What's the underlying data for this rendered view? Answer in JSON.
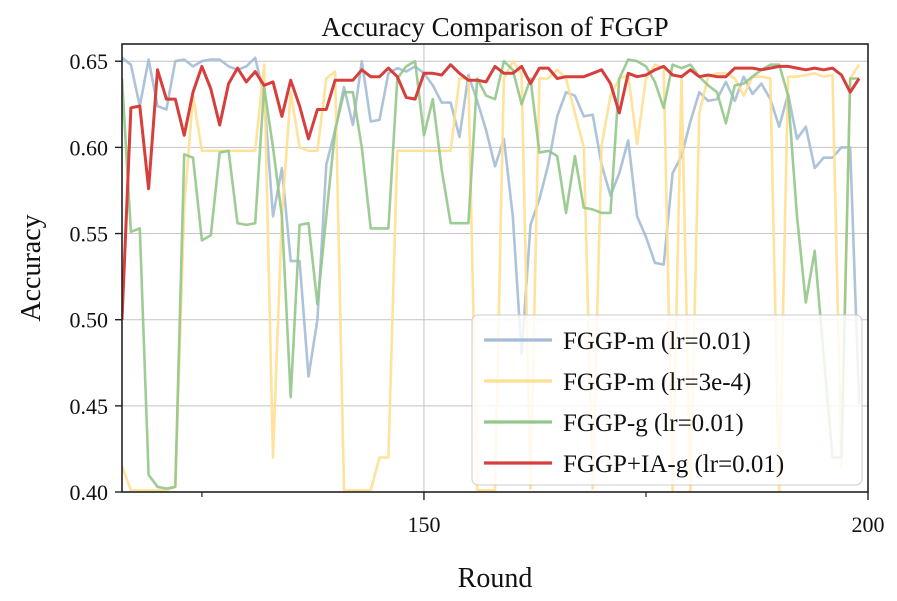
{
  "chart_data": {
    "type": "line",
    "title": "Accuracy Comparison of FGGP",
    "xlabel": "Round",
    "ylabel": "Accuracy",
    "xlim": [
      116,
      200
    ],
    "ylim": [
      0.4,
      0.66
    ],
    "x_major_ticks": [
      150,
      200
    ],
    "x_minor_ticks": [
      125,
      175
    ],
    "y_ticks": [
      0.4,
      0.45,
      0.5,
      0.55,
      0.6,
      0.65
    ],
    "y_tick_labels": [
      "0.40",
      "0.45",
      "0.50",
      "0.55",
      "0.60",
      "0.65"
    ],
    "x_tick_labels": [
      "150",
      "200"
    ],
    "grid": true,
    "legend_position": "bottom-right",
    "x": [
      116,
      117,
      118,
      119,
      120,
      121,
      122,
      123,
      124,
      125,
      126,
      127,
      128,
      129,
      130,
      131,
      132,
      133,
      134,
      135,
      136,
      137,
      138,
      139,
      140,
      141,
      142,
      143,
      144,
      145,
      146,
      147,
      148,
      149,
      150,
      151,
      152,
      153,
      154,
      155,
      156,
      157,
      158,
      159,
      160,
      161,
      162,
      163,
      164,
      165,
      166,
      167,
      168,
      169,
      170,
      171,
      172,
      173,
      174,
      175,
      176,
      177,
      178,
      179,
      180,
      181,
      182,
      183,
      184,
      185,
      186,
      187,
      188,
      189,
      190,
      191,
      192,
      193,
      194,
      195,
      196,
      197,
      198,
      199
    ],
    "series": [
      {
        "name": "FGGP-m (lr=0.01)",
        "color": "#a4bcd6",
        "values": [
          0.652,
          0.648,
          0.624,
          0.651,
          0.624,
          0.622,
          0.65,
          0.651,
          0.647,
          0.65,
          0.651,
          0.651,
          0.647,
          0.645,
          0.647,
          0.652,
          0.63,
          0.56,
          0.588,
          0.534,
          0.534,
          0.467,
          0.5,
          0.59,
          0.61,
          0.635,
          0.613,
          0.65,
          0.615,
          0.616,
          0.643,
          0.646,
          0.644,
          0.647,
          0.643,
          0.636,
          0.626,
          0.626,
          0.606,
          0.642,
          0.627,
          0.61,
          0.589,
          0.605,
          0.56,
          0.48,
          0.555,
          0.57,
          0.59,
          0.618,
          0.632,
          0.63,
          0.618,
          0.619,
          0.59,
          0.572,
          0.585,
          0.604,
          0.56,
          0.548,
          0.533,
          0.532,
          0.585,
          0.595,
          0.615,
          0.632,
          0.627,
          0.628,
          0.638,
          0.627,
          0.641,
          0.631,
          0.637,
          0.628,
          0.612,
          0.631,
          0.605,
          0.612,
          0.588,
          0.594,
          0.594,
          0.6,
          0.6,
          0.451
        ]
      },
      {
        "name": "FGGP-m (lr=3e-4)",
        "color": "#ffdf90",
        "values": [
          0.415,
          0.401,
          0.401,
          0.401,
          0.401,
          0.401,
          0.403,
          0.565,
          0.63,
          0.598,
          0.598,
          0.598,
          0.598,
          0.598,
          0.598,
          0.598,
          0.648,
          0.42,
          0.56,
          0.632,
          0.6,
          0.598,
          0.598,
          0.64,
          0.644,
          0.401,
          0.401,
          0.401,
          0.401,
          0.42,
          0.42,
          0.598,
          0.598,
          0.598,
          0.598,
          0.598,
          0.598,
          0.598,
          0.64,
          0.64,
          0.401,
          0.401,
          0.401,
          0.64,
          0.65,
          0.643,
          0.402,
          0.64,
          0.64,
          0.645,
          0.64,
          0.62,
          0.6,
          0.402,
          0.601,
          0.63,
          0.64,
          0.642,
          0.602,
          0.64,
          0.648,
          0.646,
          0.401,
          0.64,
          0.401,
          0.62,
          0.641,
          0.643,
          0.643,
          0.64,
          0.63,
          0.641,
          0.641,
          0.64,
          0.401,
          0.641,
          0.641,
          0.642,
          0.643,
          0.641,
          0.642,
          0.415,
          0.64,
          0.648
        ]
      },
      {
        "name": "FGGP-g (lr=0.01)",
        "color": "#93c68a",
        "values": [
          0.64,
          0.551,
          0.553,
          0.41,
          0.403,
          0.402,
          0.403,
          0.596,
          0.594,
          0.546,
          0.549,
          0.597,
          0.598,
          0.556,
          0.555,
          0.556,
          0.635,
          0.6,
          0.56,
          0.455,
          0.555,
          0.556,
          0.509,
          0.56,
          0.61,
          0.632,
          0.632,
          0.6,
          0.553,
          0.553,
          0.553,
          0.64,
          0.647,
          0.65,
          0.607,
          0.628,
          0.587,
          0.556,
          0.556,
          0.556,
          0.64,
          0.63,
          0.628,
          0.65,
          0.645,
          0.625,
          0.64,
          0.597,
          0.598,
          0.595,
          0.562,
          0.595,
          0.565,
          0.564,
          0.562,
          0.562,
          0.64,
          0.651,
          0.65,
          0.647,
          0.638,
          0.623,
          0.648,
          0.646,
          0.648,
          0.641,
          0.636,
          0.632,
          0.614,
          0.636,
          0.637,
          0.641,
          0.645,
          0.648,
          0.648,
          0.63,
          0.56,
          0.51,
          0.54,
          0.48,
          0.42,
          0.42,
          0.64,
          0.64
        ]
      },
      {
        "name": "FGGP+IA-g (lr=0.01)",
        "color": "#d63f3c",
        "values": [
          0.5,
          0.623,
          0.624,
          0.576,
          0.645,
          0.628,
          0.628,
          0.607,
          0.632,
          0.647,
          0.634,
          0.613,
          0.637,
          0.646,
          0.638,
          0.644,
          0.636,
          0.638,
          0.618,
          0.639,
          0.624,
          0.605,
          0.622,
          0.622,
          0.639,
          0.639,
          0.639,
          0.645,
          0.641,
          0.641,
          0.646,
          0.641,
          0.629,
          0.628,
          0.643,
          0.643,
          0.642,
          0.648,
          0.643,
          0.639,
          0.639,
          0.638,
          0.647,
          0.643,
          0.643,
          0.647,
          0.637,
          0.646,
          0.646,
          0.64,
          0.641,
          0.641,
          0.641,
          0.643,
          0.645,
          0.637,
          0.62,
          0.643,
          0.641,
          0.642,
          0.645,
          0.647,
          0.642,
          0.641,
          0.645,
          0.641,
          0.642,
          0.641,
          0.641,
          0.646,
          0.646,
          0.646,
          0.645,
          0.646,
          0.647,
          0.647,
          0.646,
          0.645,
          0.646,
          0.645,
          0.646,
          0.642,
          0.632,
          0.64
        ]
      }
    ]
  }
}
